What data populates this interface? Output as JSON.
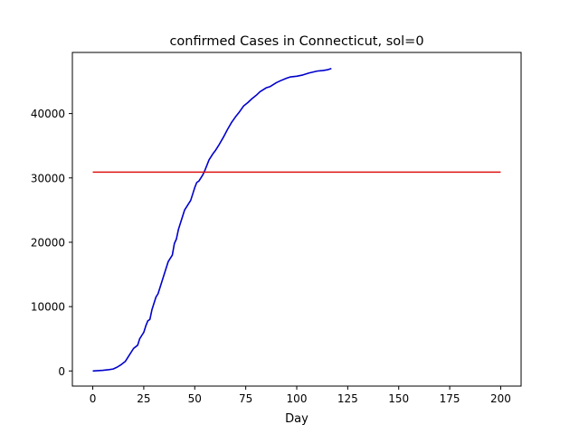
{
  "chart_data": {
    "type": "line",
    "title": "confirmed Cases in Connecticut, sol=0",
    "xlabel": "Day",
    "ylabel": "",
    "xlim": [
      -10,
      210
    ],
    "ylim": [
      -2350,
      49500
    ],
    "xticks": [
      0,
      25,
      50,
      75,
      100,
      125,
      150,
      175,
      200
    ],
    "yticks": [
      0,
      10000,
      20000,
      30000,
      40000
    ],
    "grid": false,
    "series": [
      {
        "color": "#0000cc",
        "x": [
          0,
          5,
          8,
          10,
          12,
          14,
          16,
          18,
          20,
          22,
          23,
          24,
          25,
          26,
          27,
          28,
          29,
          30,
          31,
          32,
          33,
          34,
          35,
          36,
          37,
          38,
          39,
          40,
          41,
          42,
          43,
          44,
          45,
          46,
          47,
          48,
          49,
          50,
          51,
          52,
          53,
          54,
          55,
          56,
          57,
          58,
          59,
          60,
          62,
          64,
          66,
          68,
          70,
          72,
          74,
          76,
          78,
          80,
          82,
          85,
          87,
          90,
          92,
          95,
          97,
          100,
          103,
          106,
          110,
          113,
          115,
          117
        ],
        "y": [
          0,
          100,
          200,
          300,
          600,
          1000,
          1500,
          2500,
          3500,
          4000,
          5000,
          5500,
          6000,
          7000,
          7800,
          8000,
          9500,
          10500,
          11500,
          12000,
          13000,
          14000,
          15000,
          16000,
          17000,
          17500,
          18000,
          19800,
          20500,
          22000,
          23000,
          24000,
          25000,
          25500,
          26000,
          26500,
          27500,
          28500,
          29300,
          29500,
          30000,
          30500,
          31200,
          32000,
          32800,
          33300,
          33800,
          34200,
          35200,
          36300,
          37500,
          38600,
          39500,
          40300,
          41200,
          41700,
          42300,
          42800,
          43400,
          44000,
          44200,
          44800,
          45100,
          45500,
          45700,
          45800,
          46000,
          46300,
          46600,
          46700,
          46800,
          47000
        ]
      },
      {
        "color": "#dd1111",
        "x": [
          0,
          200
        ],
        "y": [
          30900,
          30900
        ]
      }
    ]
  }
}
